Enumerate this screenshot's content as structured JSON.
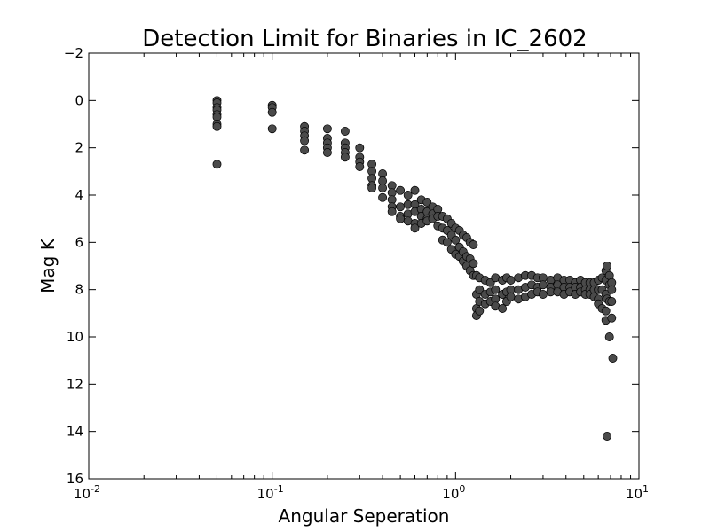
{
  "chart_data": {
    "type": "scatter",
    "title": "Detection Limit for Binaries in IC_2602",
    "xlabel": "Angular Seperation",
    "ylabel": "Mag K",
    "xscale": "log",
    "xlim": [
      0.01,
      10
    ],
    "ylim": [
      16,
      -2
    ],
    "y_inverted": true,
    "grid": false,
    "legend": "none",
    "marker_color": "#4a4a4a",
    "x_ticks": [
      {
        "value": 0.01,
        "base": "10",
        "exp": "-2"
      },
      {
        "value": 0.1,
        "base": "10",
        "exp": "-1"
      },
      {
        "value": 1,
        "base": "10",
        "exp": "0"
      },
      {
        "value": 10,
        "base": "10",
        "exp": "1"
      }
    ],
    "y_ticks": [
      {
        "value": -2,
        "label": "−2"
      },
      {
        "value": 0,
        "label": "0"
      },
      {
        "value": 2,
        "label": "2"
      },
      {
        "value": 4,
        "label": "4"
      },
      {
        "value": 6,
        "label": "6"
      },
      {
        "value": 8,
        "label": "8"
      },
      {
        "value": 10,
        "label": "10"
      },
      {
        "value": 12,
        "label": "12"
      },
      {
        "value": 14,
        "label": "14"
      },
      {
        "value": 16,
        "label": "16"
      }
    ],
    "points": [
      [
        0.05,
        0.0
      ],
      [
        0.05,
        0.1
      ],
      [
        0.05,
        0.3
      ],
      [
        0.05,
        0.4
      ],
      [
        0.05,
        0.6
      ],
      [
        0.05,
        0.7
      ],
      [
        0.05,
        1.0
      ],
      [
        0.05,
        1.1
      ],
      [
        0.05,
        2.7
      ],
      [
        0.1,
        0.2
      ],
      [
        0.1,
        0.3
      ],
      [
        0.1,
        0.5
      ],
      [
        0.1,
        1.2
      ],
      [
        0.15,
        1.1
      ],
      [
        0.15,
        1.3
      ],
      [
        0.15,
        1.5
      ],
      [
        0.15,
        1.7
      ],
      [
        0.15,
        2.1
      ],
      [
        0.2,
        1.2
      ],
      [
        0.2,
        1.6
      ],
      [
        0.2,
        1.8
      ],
      [
        0.2,
        2.0
      ],
      [
        0.2,
        2.2
      ],
      [
        0.25,
        1.3
      ],
      [
        0.25,
        1.8
      ],
      [
        0.25,
        2.0
      ],
      [
        0.25,
        2.2
      ],
      [
        0.25,
        2.4
      ],
      [
        0.3,
        2.0
      ],
      [
        0.3,
        2.4
      ],
      [
        0.3,
        2.6
      ],
      [
        0.3,
        2.8
      ],
      [
        0.35,
        2.7
      ],
      [
        0.35,
        3.0
      ],
      [
        0.35,
        3.3
      ],
      [
        0.35,
        3.6
      ],
      [
        0.35,
        3.7
      ],
      [
        0.4,
        3.1
      ],
      [
        0.4,
        3.4
      ],
      [
        0.4,
        3.7
      ],
      [
        0.4,
        4.1
      ],
      [
        0.45,
        3.6
      ],
      [
        0.45,
        3.9
      ],
      [
        0.45,
        4.2
      ],
      [
        0.45,
        4.5
      ],
      [
        0.45,
        4.7
      ],
      [
        0.5,
        3.8
      ],
      [
        0.5,
        4.5
      ],
      [
        0.5,
        4.9
      ],
      [
        0.5,
        5.0
      ],
      [
        0.55,
        4.0
      ],
      [
        0.55,
        4.4
      ],
      [
        0.55,
        4.8
      ],
      [
        0.55,
        5.1
      ],
      [
        0.6,
        3.8
      ],
      [
        0.6,
        4.4
      ],
      [
        0.6,
        4.7
      ],
      [
        0.6,
        5.2
      ],
      [
        0.6,
        5.4
      ],
      [
        0.65,
        4.2
      ],
      [
        0.65,
        4.6
      ],
      [
        0.65,
        4.9
      ],
      [
        0.65,
        5.2
      ],
      [
        0.7,
        4.3
      ],
      [
        0.7,
        4.7
      ],
      [
        0.7,
        5.0
      ],
      [
        0.7,
        5.1
      ],
      [
        0.75,
        4.5
      ],
      [
        0.75,
        4.8
      ],
      [
        0.75,
        5.0
      ],
      [
        0.8,
        4.6
      ],
      [
        0.8,
        4.9
      ],
      [
        0.8,
        5.3
      ],
      [
        0.85,
        4.9
      ],
      [
        0.85,
        5.4
      ],
      [
        0.85,
        5.9
      ],
      [
        0.9,
        5.0
      ],
      [
        0.9,
        5.5
      ],
      [
        0.9,
        6.0
      ],
      [
        0.95,
        5.2
      ],
      [
        0.95,
        5.7
      ],
      [
        0.95,
        6.3
      ],
      [
        1.0,
        5.4
      ],
      [
        1.0,
        5.9
      ],
      [
        1.0,
        6.5
      ],
      [
        1.05,
        5.5
      ],
      [
        1.05,
        6.2
      ],
      [
        1.05,
        6.6
      ],
      [
        1.1,
        5.7
      ],
      [
        1.1,
        6.4
      ],
      [
        1.1,
        6.8
      ],
      [
        1.15,
        5.8
      ],
      [
        1.15,
        6.6
      ],
      [
        1.15,
        7.0
      ],
      [
        1.2,
        6.0
      ],
      [
        1.2,
        6.7
      ],
      [
        1.2,
        7.2
      ],
      [
        1.25,
        6.1
      ],
      [
        1.25,
        6.9
      ],
      [
        1.25,
        7.4
      ],
      [
        1.3,
        7.4
      ],
      [
        1.3,
        8.2
      ],
      [
        1.3,
        8.8
      ],
      [
        1.3,
        9.1
      ],
      [
        1.35,
        7.5
      ],
      [
        1.35,
        8.0
      ],
      [
        1.35,
        8.5
      ],
      [
        1.35,
        8.9
      ],
      [
        1.45,
        7.6
      ],
      [
        1.45,
        8.2
      ],
      [
        1.45,
        8.6
      ],
      [
        1.55,
        7.7
      ],
      [
        1.55,
        8.1
      ],
      [
        1.55,
        8.5
      ],
      [
        1.65,
        7.5
      ],
      [
        1.65,
        8.0
      ],
      [
        1.65,
        8.4
      ],
      [
        1.65,
        8.7
      ],
      [
        1.8,
        7.6
      ],
      [
        1.8,
        8.2
      ],
      [
        1.8,
        8.8
      ],
      [
        1.9,
        7.5
      ],
      [
        1.9,
        8.1
      ],
      [
        1.9,
        8.5
      ],
      [
        2.0,
        7.6
      ],
      [
        2.0,
        8.0
      ],
      [
        2.0,
        8.3
      ],
      [
        2.2,
        7.5
      ],
      [
        2.2,
        8.0
      ],
      [
        2.2,
        8.4
      ],
      [
        2.4,
        7.4
      ],
      [
        2.4,
        7.9
      ],
      [
        2.4,
        8.3
      ],
      [
        2.6,
        7.4
      ],
      [
        2.6,
        7.8
      ],
      [
        2.6,
        8.2
      ],
      [
        2.8,
        7.5
      ],
      [
        2.8,
        7.9
      ],
      [
        2.8,
        8.1
      ],
      [
        3.0,
        7.5
      ],
      [
        3.0,
        7.8
      ],
      [
        3.0,
        8.2
      ],
      [
        3.3,
        7.6
      ],
      [
        3.3,
        7.9
      ],
      [
        3.3,
        8.1
      ],
      [
        3.6,
        7.5
      ],
      [
        3.6,
        7.8
      ],
      [
        3.6,
        8.1
      ],
      [
        3.9,
        7.6
      ],
      [
        3.9,
        7.9
      ],
      [
        3.9,
        8.2
      ],
      [
        4.2,
        7.6
      ],
      [
        4.2,
        7.9
      ],
      [
        4.2,
        8.1
      ],
      [
        4.5,
        7.7
      ],
      [
        4.5,
        7.9
      ],
      [
        4.5,
        8.2
      ],
      [
        4.8,
        7.6
      ],
      [
        4.8,
        7.9
      ],
      [
        4.8,
        8.1
      ],
      [
        5.1,
        7.7
      ],
      [
        5.1,
        8.0
      ],
      [
        5.1,
        8.2
      ],
      [
        5.4,
        7.7
      ],
      [
        5.4,
        8.0
      ],
      [
        5.4,
        8.2
      ],
      [
        5.7,
        7.7
      ],
      [
        5.7,
        8.0
      ],
      [
        5.7,
        8.3
      ],
      [
        6.0,
        7.6
      ],
      [
        6.0,
        8.0
      ],
      [
        6.0,
        8.4
      ],
      [
        6.0,
        8.6
      ],
      [
        6.3,
        7.5
      ],
      [
        6.3,
        8.0
      ],
      [
        6.3,
        8.8
      ],
      [
        6.6,
        7.2
      ],
      [
        6.6,
        7.6
      ],
      [
        6.6,
        8.2
      ],
      [
        6.6,
        8.9
      ],
      [
        6.6,
        9.3
      ],
      [
        6.7,
        7.0
      ],
      [
        6.7,
        8.4
      ],
      [
        6.7,
        14.2
      ],
      [
        6.9,
        7.4
      ],
      [
        6.9,
        7.8
      ],
      [
        6.9,
        8.5
      ],
      [
        6.9,
        10.0
      ],
      [
        7.1,
        7.7
      ],
      [
        7.1,
        8.0
      ],
      [
        7.1,
        8.5
      ],
      [
        7.1,
        9.2
      ],
      [
        7.2,
        10.9
      ]
    ]
  }
}
